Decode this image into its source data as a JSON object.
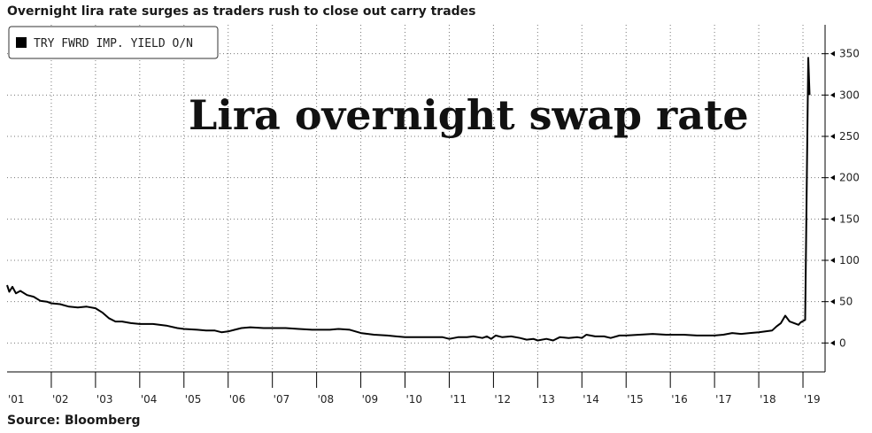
{
  "header": {
    "title": "Overnight lira rate surges as traders rush to close out carry trades"
  },
  "footer": {
    "source": "Source: Bloomberg"
  },
  "chart_data": {
    "type": "line",
    "title": "Overnight lira rate surges as traders rush to close out carry trades",
    "annotation": "Lira overnight swap rate",
    "legend": {
      "entries": [
        "TRY FWRD IMP. YIELD O/N"
      ],
      "placement": "top-left"
    },
    "xlabel": "",
    "ylabel": "",
    "xlim": [
      2001.0,
      2019.5
    ],
    "ylim": [
      -35,
      385
    ],
    "y_axis_side": "right",
    "grid": true,
    "x_tick_labels": [
      "'01",
      "'02",
      "'03",
      "'04",
      "'05",
      "'06",
      "'07",
      "'08",
      "'09",
      "'10",
      "'11",
      "'12",
      "'13",
      "'14",
      "'15",
      "'16",
      "'17",
      "'18",
      "'19"
    ],
    "y_ticks": [
      0,
      50,
      100,
      150,
      200,
      250,
      300,
      350
    ],
    "series": [
      {
        "name": "TRY FWRD IMP. YIELD O/N",
        "color": "#000000",
        "points": [
          [
            2001.0,
            70
          ],
          [
            2001.05,
            62
          ],
          [
            2001.12,
            68
          ],
          [
            2001.2,
            60
          ],
          [
            2001.3,
            63
          ],
          [
            2001.45,
            58
          ],
          [
            2001.6,
            56
          ],
          [
            2001.75,
            51
          ],
          [
            2001.9,
            50
          ],
          [
            2002.0,
            48
          ],
          [
            2002.2,
            47
          ],
          [
            2002.4,
            44
          ],
          [
            2002.6,
            43
          ],
          [
            2002.8,
            44
          ],
          [
            2003.0,
            42
          ],
          [
            2003.15,
            37
          ],
          [
            2003.3,
            30
          ],
          [
            2003.45,
            26
          ],
          [
            2003.6,
            26
          ],
          [
            2003.8,
            24
          ],
          [
            2004.0,
            23
          ],
          [
            2004.3,
            23
          ],
          [
            2004.6,
            21
          ],
          [
            2004.85,
            18
          ],
          [
            2005.0,
            17
          ],
          [
            2005.3,
            16
          ],
          [
            2005.5,
            15
          ],
          [
            2005.7,
            15
          ],
          [
            2005.85,
            13
          ],
          [
            2006.0,
            14
          ],
          [
            2006.15,
            16
          ],
          [
            2006.3,
            18
          ],
          [
            2006.5,
            19
          ],
          [
            2006.8,
            18
          ],
          [
            2007.0,
            18
          ],
          [
            2007.3,
            18
          ],
          [
            2007.6,
            17
          ],
          [
            2007.9,
            16
          ],
          [
            2008.0,
            16
          ],
          [
            2008.3,
            16
          ],
          [
            2008.5,
            17
          ],
          [
            2008.75,
            16
          ],
          [
            2009.0,
            12
          ],
          [
            2009.3,
            10
          ],
          [
            2009.6,
            9
          ],
          [
            2009.8,
            8
          ],
          [
            2010.0,
            7
          ],
          [
            2010.3,
            7
          ],
          [
            2010.6,
            7
          ],
          [
            2010.85,
            7
          ],
          [
            2011.0,
            5
          ],
          [
            2011.2,
            7
          ],
          [
            2011.4,
            7
          ],
          [
            2011.55,
            8
          ],
          [
            2011.75,
            6
          ],
          [
            2011.85,
            8
          ],
          [
            2011.95,
            5
          ],
          [
            2012.05,
            9
          ],
          [
            2012.2,
            7
          ],
          [
            2012.4,
            8
          ],
          [
            2012.6,
            6
          ],
          [
            2012.75,
            4
          ],
          [
            2012.9,
            5
          ],
          [
            2013.0,
            3
          ],
          [
            2013.2,
            5
          ],
          [
            2013.35,
            3
          ],
          [
            2013.5,
            7
          ],
          [
            2013.7,
            6
          ],
          [
            2013.9,
            7
          ],
          [
            2014.0,
            6
          ],
          [
            2014.1,
            10
          ],
          [
            2014.3,
            8
          ],
          [
            2014.5,
            8
          ],
          [
            2014.65,
            6
          ],
          [
            2014.85,
            9
          ],
          [
            2015.0,
            9
          ],
          [
            2015.3,
            10
          ],
          [
            2015.6,
            11
          ],
          [
            2015.9,
            10
          ],
          [
            2016.0,
            10
          ],
          [
            2016.3,
            10
          ],
          [
            2016.6,
            9
          ],
          [
            2016.9,
            9
          ],
          [
            2017.0,
            9
          ],
          [
            2017.2,
            10
          ],
          [
            2017.4,
            12
          ],
          [
            2017.6,
            11
          ],
          [
            2017.8,
            12
          ],
          [
            2018.0,
            13
          ],
          [
            2018.15,
            14
          ],
          [
            2018.3,
            15
          ],
          [
            2018.4,
            20
          ],
          [
            2018.5,
            24
          ],
          [
            2018.6,
            33
          ],
          [
            2018.7,
            26
          ],
          [
            2018.8,
            24
          ],
          [
            2018.9,
            22
          ],
          [
            2018.95,
            25
          ],
          [
            2019.05,
            28
          ],
          [
            2019.12,
            345
          ],
          [
            2019.15,
            300
          ]
        ]
      }
    ]
  }
}
